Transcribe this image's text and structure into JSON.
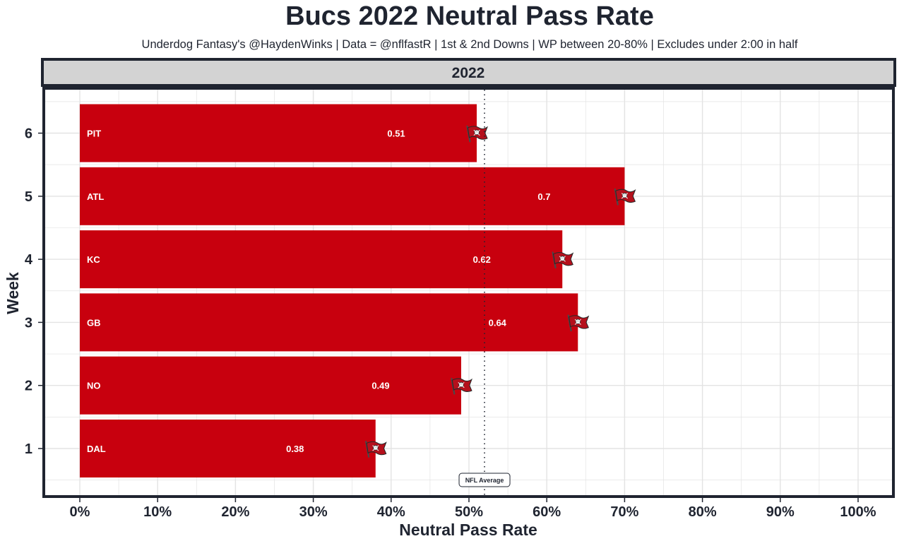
{
  "title": "Bucs 2022 Neutral Pass Rate",
  "subtitle": "Underdog Fantasy's @HaydenWinks | Data = @nflfastR | 1st & 2nd Downs | WP between 20-80% | Excludes under 2:00 in half",
  "chart_data": {
    "type": "bar",
    "orientation": "horizontal",
    "facet_label": "2022",
    "xlabel": "Neutral Pass Rate",
    "ylabel": "Week",
    "xlim": [
      0,
      1
    ],
    "x_ticks": [
      "0%",
      "10%",
      "20%",
      "30%",
      "40%",
      "50%",
      "60%",
      "70%",
      "80%",
      "90%",
      "100%"
    ],
    "y_ticks": [
      "1",
      "2",
      "3",
      "4",
      "5",
      "6"
    ],
    "bars": [
      {
        "week": 1,
        "opponent": "DAL",
        "value": 0.38,
        "label": "0.38"
      },
      {
        "week": 2,
        "opponent": "NO",
        "value": 0.49,
        "label": "0.49"
      },
      {
        "week": 3,
        "opponent": "GB",
        "value": 0.64,
        "label": "0.64"
      },
      {
        "week": 4,
        "opponent": "KC",
        "value": 0.62,
        "label": "0.62"
      },
      {
        "week": 5,
        "opponent": "ATL",
        "value": 0.7,
        "label": "0.7"
      },
      {
        "week": 6,
        "opponent": "PIT",
        "value": 0.51,
        "label": "0.51"
      }
    ],
    "reference_line": {
      "label": "NFL Average",
      "value": 0.52
    },
    "colors": {
      "bar": "#c8000e",
      "panel_border": "#1f2430",
      "strip": "#d3d3d3",
      "grid": "#e3e3e3"
    },
    "logo_icon": "buccaneers-flag-icon"
  }
}
